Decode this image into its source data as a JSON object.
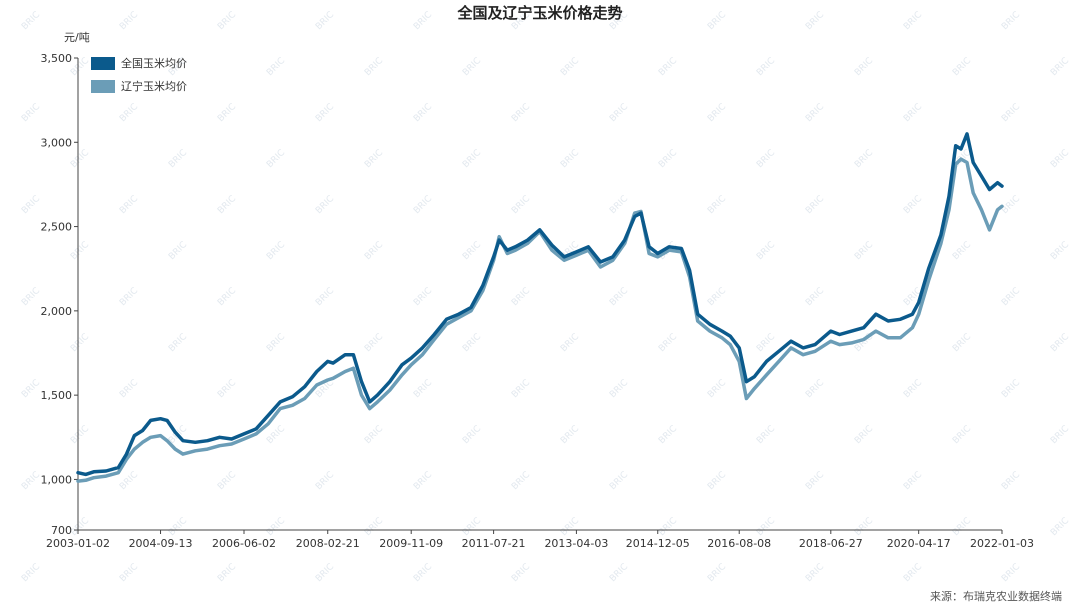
{
  "chart_data": {
    "type": "line",
    "title": "全国及辽宁玉米价格走势",
    "unit": "元/吨",
    "ylim": [
      700,
      3500
    ],
    "y_ticks": [
      700,
      1000,
      1500,
      2000,
      2500,
      3000,
      3500
    ],
    "y_tick_labels": [
      "700",
      "1,000",
      "1,500",
      "2,000",
      "2,500",
      "3,000",
      "3,500"
    ],
    "x_ticks": [
      "2003-01-02",
      "2004-09-13",
      "2006-06-02",
      "2008-02-21",
      "2009-11-09",
      "2011-07-21",
      "2013-04-03",
      "2014-12-05",
      "2016-08-08",
      "2018-06-27",
      "2020-04-17",
      "2022-01-03"
    ],
    "x_range": [
      "2003-01-02",
      "2022-01-03"
    ],
    "grid": false,
    "legend_position": "top-left",
    "series": [
      {
        "name": "全国玉米均价",
        "color": "#0b5a8c",
        "points": [
          [
            "2003-01-02",
            1040
          ],
          [
            "2003-03-01",
            1030
          ],
          [
            "2003-05-01",
            1045
          ],
          [
            "2003-08-01",
            1050
          ],
          [
            "2003-11-01",
            1070
          ],
          [
            "2004-01-01",
            1150
          ],
          [
            "2004-03-01",
            1260
          ],
          [
            "2004-05-01",
            1290
          ],
          [
            "2004-07-01",
            1350
          ],
          [
            "2004-09-13",
            1360
          ],
          [
            "2004-11-01",
            1350
          ],
          [
            "2005-01-01",
            1280
          ],
          [
            "2005-03-01",
            1230
          ],
          [
            "2005-06-01",
            1220
          ],
          [
            "2005-09-01",
            1230
          ],
          [
            "2005-12-01",
            1250
          ],
          [
            "2006-03-01",
            1240
          ],
          [
            "2006-06-02",
            1270
          ],
          [
            "2006-09-01",
            1300
          ],
          [
            "2006-12-01",
            1380
          ],
          [
            "2007-03-01",
            1460
          ],
          [
            "2007-06-01",
            1490
          ],
          [
            "2007-09-01",
            1550
          ],
          [
            "2007-12-01",
            1640
          ],
          [
            "2008-02-21",
            1700
          ],
          [
            "2008-04-01",
            1690
          ],
          [
            "2008-07-01",
            1740
          ],
          [
            "2008-09-01",
            1740
          ],
          [
            "2008-11-01",
            1580
          ],
          [
            "2009-01-01",
            1460
          ],
          [
            "2009-03-01",
            1500
          ],
          [
            "2009-06-01",
            1580
          ],
          [
            "2009-09-01",
            1680
          ],
          [
            "2009-11-09",
            1720
          ],
          [
            "2010-02-01",
            1780
          ],
          [
            "2010-05-01",
            1860
          ],
          [
            "2010-08-01",
            1950
          ],
          [
            "2010-11-01",
            1980
          ],
          [
            "2011-02-01",
            2020
          ],
          [
            "2011-05-01",
            2150
          ],
          [
            "2011-07-21",
            2320
          ],
          [
            "2011-09-01",
            2420
          ],
          [
            "2011-11-01",
            2360
          ],
          [
            "2012-01-01",
            2380
          ],
          [
            "2012-04-01",
            2420
          ],
          [
            "2012-07-01",
            2480
          ],
          [
            "2012-10-01",
            2390
          ],
          [
            "2013-01-01",
            2320
          ],
          [
            "2013-04-03",
            2350
          ],
          [
            "2013-07-01",
            2380
          ],
          [
            "2013-10-01",
            2290
          ],
          [
            "2014-01-01",
            2320
          ],
          [
            "2014-04-01",
            2420
          ],
          [
            "2014-06-15",
            2560
          ],
          [
            "2014-08-01",
            2580
          ],
          [
            "2014-10-01",
            2380
          ],
          [
            "2014-12-05",
            2340
          ],
          [
            "2015-03-01",
            2380
          ],
          [
            "2015-06-01",
            2370
          ],
          [
            "2015-08-01",
            2240
          ],
          [
            "2015-10-01",
            1980
          ],
          [
            "2016-01-01",
            1920
          ],
          [
            "2016-04-01",
            1880
          ],
          [
            "2016-06-01",
            1850
          ],
          [
            "2016-08-08",
            1780
          ],
          [
            "2016-10-01",
            1580
          ],
          [
            "2016-12-01",
            1610
          ],
          [
            "2017-03-01",
            1700
          ],
          [
            "2017-06-01",
            1760
          ],
          [
            "2017-09-01",
            1820
          ],
          [
            "2017-12-01",
            1780
          ],
          [
            "2018-03-01",
            1800
          ],
          [
            "2018-06-27",
            1880
          ],
          [
            "2018-09-01",
            1860
          ],
          [
            "2018-12-01",
            1880
          ],
          [
            "2019-03-01",
            1900
          ],
          [
            "2019-06-01",
            1980
          ],
          [
            "2019-09-01",
            1940
          ],
          [
            "2019-12-01",
            1950
          ],
          [
            "2020-03-01",
            1980
          ],
          [
            "2020-04-17",
            2050
          ],
          [
            "2020-07-01",
            2250
          ],
          [
            "2020-10-01",
            2450
          ],
          [
            "2020-12-01",
            2680
          ],
          [
            "2021-01-20",
            2980
          ],
          [
            "2021-03-01",
            2960
          ],
          [
            "2021-04-15",
            3050
          ],
          [
            "2021-06-01",
            2880
          ],
          [
            "2021-08-01",
            2800
          ],
          [
            "2021-10-01",
            2720
          ],
          [
            "2021-12-01",
            2760
          ],
          [
            "2022-01-03",
            2740
          ]
        ]
      },
      {
        "name": "辽宁玉米均价",
        "color": "#6b9db7",
        "points": [
          [
            "2003-01-02",
            990
          ],
          [
            "2003-03-01",
            995
          ],
          [
            "2003-05-01",
            1010
          ],
          [
            "2003-08-01",
            1020
          ],
          [
            "2003-11-01",
            1040
          ],
          [
            "2004-01-01",
            1120
          ],
          [
            "2004-03-01",
            1180
          ],
          [
            "2004-05-01",
            1220
          ],
          [
            "2004-07-01",
            1250
          ],
          [
            "2004-09-13",
            1260
          ],
          [
            "2004-11-01",
            1230
          ],
          [
            "2005-01-01",
            1180
          ],
          [
            "2005-03-01",
            1150
          ],
          [
            "2005-06-01",
            1170
          ],
          [
            "2005-09-01",
            1180
          ],
          [
            "2005-12-01",
            1200
          ],
          [
            "2006-03-01",
            1210
          ],
          [
            "2006-06-02",
            1240
          ],
          [
            "2006-09-01",
            1270
          ],
          [
            "2006-12-01",
            1330
          ],
          [
            "2007-03-01",
            1420
          ],
          [
            "2007-06-01",
            1440
          ],
          [
            "2007-09-01",
            1480
          ],
          [
            "2007-12-01",
            1560
          ],
          [
            "2008-02-21",
            1590
          ],
          [
            "2008-04-01",
            1600
          ],
          [
            "2008-07-01",
            1640
          ],
          [
            "2008-09-01",
            1660
          ],
          [
            "2008-11-01",
            1500
          ],
          [
            "2009-01-01",
            1420
          ],
          [
            "2009-03-01",
            1460
          ],
          [
            "2009-06-01",
            1530
          ],
          [
            "2009-09-01",
            1620
          ],
          [
            "2009-11-09",
            1680
          ],
          [
            "2010-02-01",
            1740
          ],
          [
            "2010-05-01",
            1830
          ],
          [
            "2010-08-01",
            1920
          ],
          [
            "2010-11-01",
            1960
          ],
          [
            "2011-02-01",
            2000
          ],
          [
            "2011-05-01",
            2120
          ],
          [
            "2011-07-21",
            2300
          ],
          [
            "2011-09-01",
            2440
          ],
          [
            "2011-11-01",
            2340
          ],
          [
            "2012-01-01",
            2360
          ],
          [
            "2012-04-01",
            2400
          ],
          [
            "2012-07-01",
            2470
          ],
          [
            "2012-10-01",
            2360
          ],
          [
            "2013-01-01",
            2300
          ],
          [
            "2013-04-03",
            2330
          ],
          [
            "2013-07-01",
            2360
          ],
          [
            "2013-10-01",
            2260
          ],
          [
            "2014-01-01",
            2300
          ],
          [
            "2014-04-01",
            2400
          ],
          [
            "2014-06-15",
            2580
          ],
          [
            "2014-08-01",
            2590
          ],
          [
            "2014-10-01",
            2340
          ],
          [
            "2014-12-05",
            2320
          ],
          [
            "2015-03-01",
            2360
          ],
          [
            "2015-06-01",
            2350
          ],
          [
            "2015-08-01",
            2200
          ],
          [
            "2015-10-01",
            1940
          ],
          [
            "2016-01-01",
            1880
          ],
          [
            "2016-04-01",
            1840
          ],
          [
            "2016-06-01",
            1800
          ],
          [
            "2016-08-08",
            1700
          ],
          [
            "2016-10-01",
            1480
          ],
          [
            "2016-12-01",
            1540
          ],
          [
            "2017-03-01",
            1620
          ],
          [
            "2017-06-01",
            1700
          ],
          [
            "2017-09-01",
            1780
          ],
          [
            "2017-12-01",
            1740
          ],
          [
            "2018-03-01",
            1760
          ],
          [
            "2018-06-27",
            1820
          ],
          [
            "2018-09-01",
            1800
          ],
          [
            "2018-12-01",
            1810
          ],
          [
            "2019-03-01",
            1830
          ],
          [
            "2019-06-01",
            1880
          ],
          [
            "2019-09-01",
            1840
          ],
          [
            "2019-12-01",
            1840
          ],
          [
            "2020-03-01",
            1900
          ],
          [
            "2020-04-17",
            1980
          ],
          [
            "2020-07-01",
            2180
          ],
          [
            "2020-10-01",
            2400
          ],
          [
            "2020-12-01",
            2600
          ],
          [
            "2021-01-20",
            2870
          ],
          [
            "2021-03-01",
            2900
          ],
          [
            "2021-04-15",
            2880
          ],
          [
            "2021-06-01",
            2700
          ],
          [
            "2021-08-01",
            2600
          ],
          [
            "2021-10-01",
            2480
          ],
          [
            "2021-12-01",
            2600
          ],
          [
            "2022-01-03",
            2620
          ]
        ]
      }
    ]
  },
  "source": "来源：布瑞克农业数据终端",
  "watermark": "BRIC"
}
